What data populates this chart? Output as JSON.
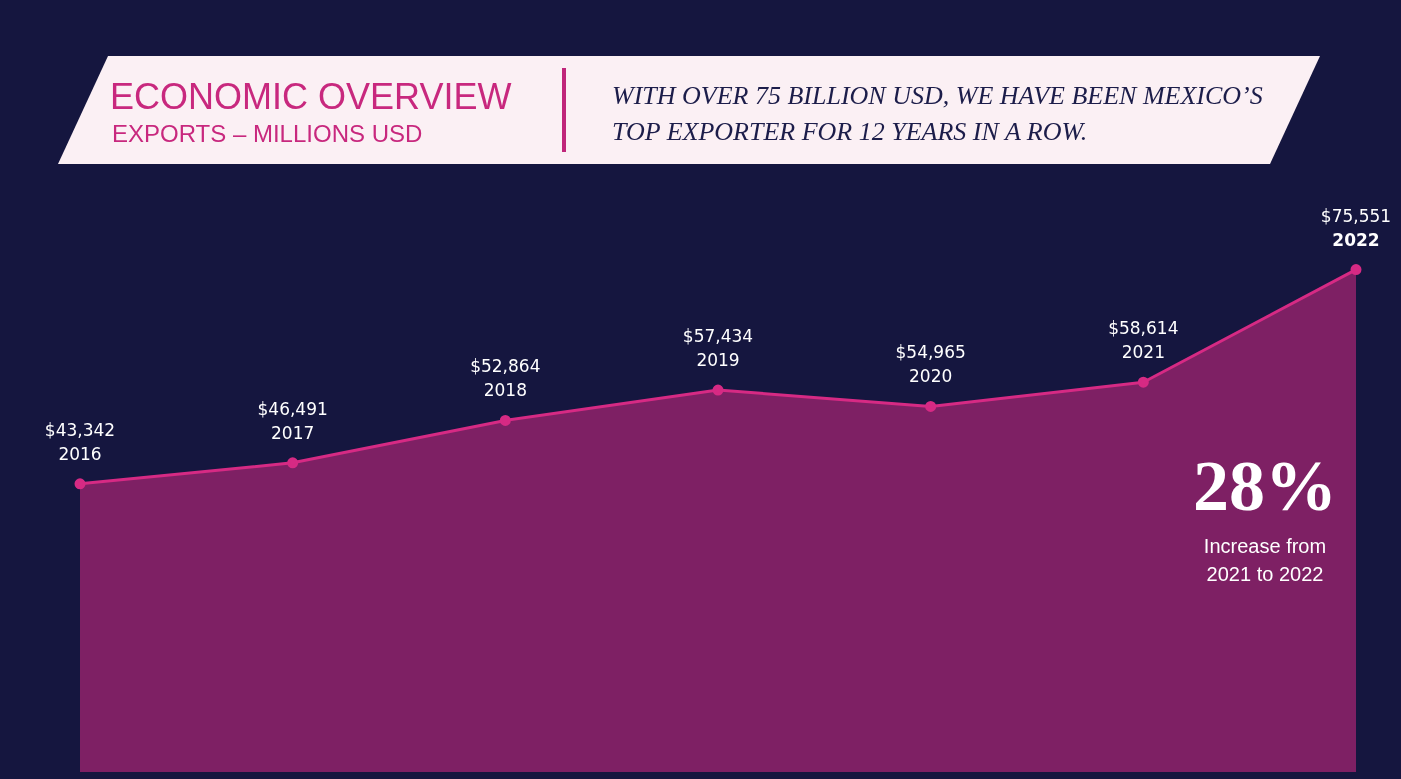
{
  "chart_data": {
    "type": "area",
    "title": "ECONOMIC OVERVIEW",
    "subtitle": "EXPORTS – MILLIONS USD",
    "categories": [
      "2016",
      "2017",
      "2018",
      "2019",
      "2020",
      "2021",
      "2022"
    ],
    "series": [
      {
        "color": "#d62a84",
        "values": [
          43342,
          46491,
          52864,
          57434,
          54965,
          58614,
          75551
        ],
        "value_labels": [
          "$43,342",
          "$46,491",
          "$52,864",
          "$57,434",
          "$54,965",
          "$58,614",
          "$75,551"
        ]
      }
    ],
    "tick_labels": false,
    "legend": false,
    "marker": "circle",
    "annotations": [
      "WITH OVER 75 BILLION USD, WE HAVE BEEN MEXICO’S TOP EXPORTER FOR 12 YEARS IN A ROW.",
      "28%",
      "Increase from 2021 to 2022"
    ]
  }
}
